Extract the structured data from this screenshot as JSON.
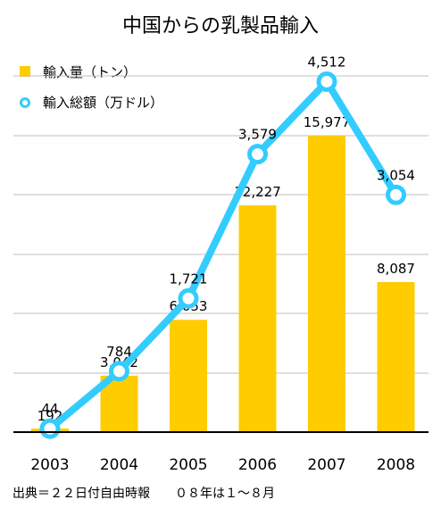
{
  "chart_data": {
    "type": "bar",
    "title": "中国からの乳製品輸入",
    "categories": [
      "2003",
      "2004",
      "2005",
      "2006",
      "2007",
      "2008"
    ],
    "series": [
      {
        "name": "輸入量（トン）",
        "type": "bar",
        "color": "#FFCC00",
        "values": [
          192,
          3042,
          6053,
          12227,
          15977,
          8087
        ],
        "labels": [
          "192",
          "3,042",
          "6,053",
          "12,227",
          "15,977",
          "8,087"
        ]
      },
      {
        "name": "輸入総額（万ドル）",
        "type": "line",
        "color": "#33CCFF",
        "values": [
          44,
          784,
          1721,
          3579,
          4512,
          3054
        ],
        "labels": [
          "44",
          "784",
          "1,721",
          "3,579",
          "4,512",
          "3,054"
        ]
      }
    ],
    "bar_ylim": [
      0,
      20000
    ],
    "line_ylim": [
      0,
      5000
    ],
    "grid": true,
    "legend": "top-left",
    "source": "出典＝２２日付自由時報　　０８年は１～８月"
  }
}
